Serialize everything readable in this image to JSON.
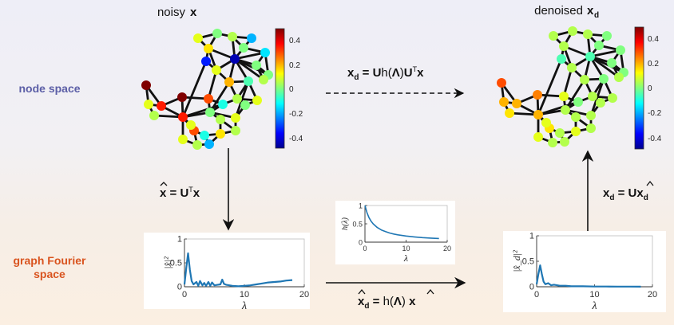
{
  "titles": {
    "noisy": "noisy",
    "noisy_sym": "x",
    "denoised": "denoised",
    "denoised_sym": "x",
    "denoised_sub": "d"
  },
  "row_labels": {
    "node_space": "node space",
    "graph_fourier_line1": "graph Fourier",
    "graph_fourier_line2": "space"
  },
  "colors": {
    "node_space_label": "#5b5ea6",
    "graph_fourier_label": "#d9531e",
    "curve": "#1f77b4",
    "edge": "#111111"
  },
  "equations": {
    "synthesis": "x_d = U h(Λ) Uᵀ x",
    "forward": "x̂ = Uᵀ x",
    "inverse": "x_d = U x̂_d",
    "filter": "x̂_d = h(Λ) x̂"
  },
  "colorbar": {
    "ticks": [
      "0.4",
      "0.2",
      "0",
      "-0.2",
      "-0.4"
    ],
    "range": [
      -0.5,
      0.5
    ]
  },
  "chart_data": [
    {
      "type": "line",
      "name": "spectrum-noisy",
      "ylabel": "|x̂|²",
      "xlabel": "λ",
      "xlim": [
        0,
        20
      ],
      "ylim": [
        0,
        1
      ],
      "yticks": [
        "1",
        "0.5",
        "0"
      ],
      "xticks": [
        "0",
        "10",
        "20"
      ],
      "x": [
        0,
        0.3,
        0.6,
        0.9,
        1.2,
        1.5,
        2,
        2.3,
        2.6,
        3,
        3.3,
        3.6,
        4,
        4.3,
        4.6,
        5,
        5.5,
        6,
        6.3,
        6.6,
        7,
        7.5,
        8,
        9,
        10,
        11,
        12,
        13,
        14,
        15,
        16,
        17,
        18
      ],
      "y": [
        0.05,
        0.4,
        0.7,
        0.35,
        0.12,
        0.05,
        0.1,
        0.02,
        0.12,
        0.03,
        0.08,
        0.02,
        0.1,
        0.02,
        0.09,
        0.03,
        0.04,
        0.05,
        0.15,
        0.06,
        0.04,
        0.03,
        0.02,
        0.01,
        0.02,
        0.03,
        0.05,
        0.07,
        0.09,
        0.1,
        0.11,
        0.13,
        0.14
      ]
    },
    {
      "type": "line",
      "name": "spectrum-denoised",
      "ylabel": "|x̂_d|²",
      "xlabel": "λ",
      "xlim": [
        0,
        20
      ],
      "ylim": [
        0,
        1
      ],
      "yticks": [
        "1",
        "0.5",
        "0"
      ],
      "xticks": [
        "0",
        "10",
        "20"
      ],
      "x": [
        0,
        0.3,
        0.6,
        0.9,
        1.2,
        1.5,
        2,
        2.5,
        3,
        4,
        5,
        6,
        8,
        10,
        12,
        14,
        16,
        18
      ],
      "y": [
        0.05,
        0.25,
        0.42,
        0.25,
        0.1,
        0.05,
        0.07,
        0.03,
        0.04,
        0.02,
        0.02,
        0.01,
        0.01,
        0.005,
        0.005,
        0.003,
        0.003,
        0.002
      ]
    },
    {
      "type": "line",
      "name": "filter-response",
      "ylabel": "h(λ)",
      "xlabel": "λ",
      "xlim": [
        0,
        20
      ],
      "ylim": [
        0,
        1
      ],
      "yticks": [
        "1",
        "0.5",
        "0"
      ],
      "xticks": [
        "0",
        "10",
        "20"
      ],
      "x": [
        0,
        0.5,
        1,
        1.5,
        2,
        3,
        4,
        5,
        6,
        7,
        8,
        10,
        12,
        14,
        16,
        18
      ],
      "y": [
        1,
        0.8,
        0.667,
        0.571,
        0.5,
        0.4,
        0.333,
        0.286,
        0.25,
        0.222,
        0.2,
        0.167,
        0.143,
        0.125,
        0.111,
        0.1
      ]
    }
  ]
}
